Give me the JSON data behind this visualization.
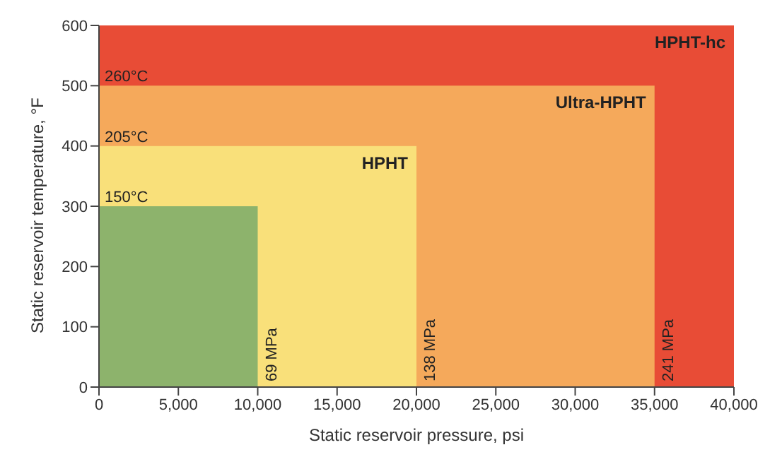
{
  "chart_data": {
    "type": "area",
    "xlabel": "Static reservoir pressure, psi",
    "ylabel": "Static reservoir temperature, °F",
    "xlim": [
      0,
      40000
    ],
    "xticks": [
      0,
      {
        "value": 5000,
        "label": "5,000"
      },
      {
        "value": 10000,
        "label": "10,000"
      },
      {
        "value": 15000,
        "label": "15,000"
      },
      {
        "value": 20000,
        "label": "20,000"
      },
      {
        "value": 25000,
        "label": "25,000"
      },
      {
        "value": 30000,
        "label": "30,000"
      },
      {
        "value": 35000,
        "label": "35,000"
      },
      {
        "value": 40000,
        "label": "40,000"
      }
    ],
    "ylim": [
      0,
      600
    ],
    "yticks": [
      0,
      100,
      200,
      300,
      400,
      500,
      600
    ],
    "grid": false,
    "legend": false,
    "series": [
      {
        "name": "HPHT-hc",
        "color": "#e84c36",
        "x": [
          0,
          40000
        ],
        "values": [
          600,
          600
        ]
      },
      {
        "name": "Ultra-HPHT",
        "color": "#f5a95b",
        "x": [
          0,
          35000
        ],
        "values": [
          500,
          500
        ]
      },
      {
        "name": "HPHT",
        "color": "#f9e07a",
        "x": [
          0,
          20000
        ],
        "values": [
          400,
          400
        ]
      },
      {
        "color": "#8db36c",
        "x": [
          0,
          10000
        ],
        "values": [
          300,
          300
        ]
      }
    ],
    "annotations": [
      {
        "text": "260°C",
        "x": 0,
        "y": 500
      },
      {
        "text": "205°C",
        "x": 0,
        "y": 400
      },
      {
        "text": "150°C",
        "x": 0,
        "y": 300
      },
      {
        "text": "69 MPa",
        "x": 10000,
        "y": 0
      },
      {
        "text": "138 MPa",
        "x": 20000,
        "y": 0
      },
      {
        "text": "241 MPa",
        "x": 35000,
        "y": 0
      }
    ]
  }
}
